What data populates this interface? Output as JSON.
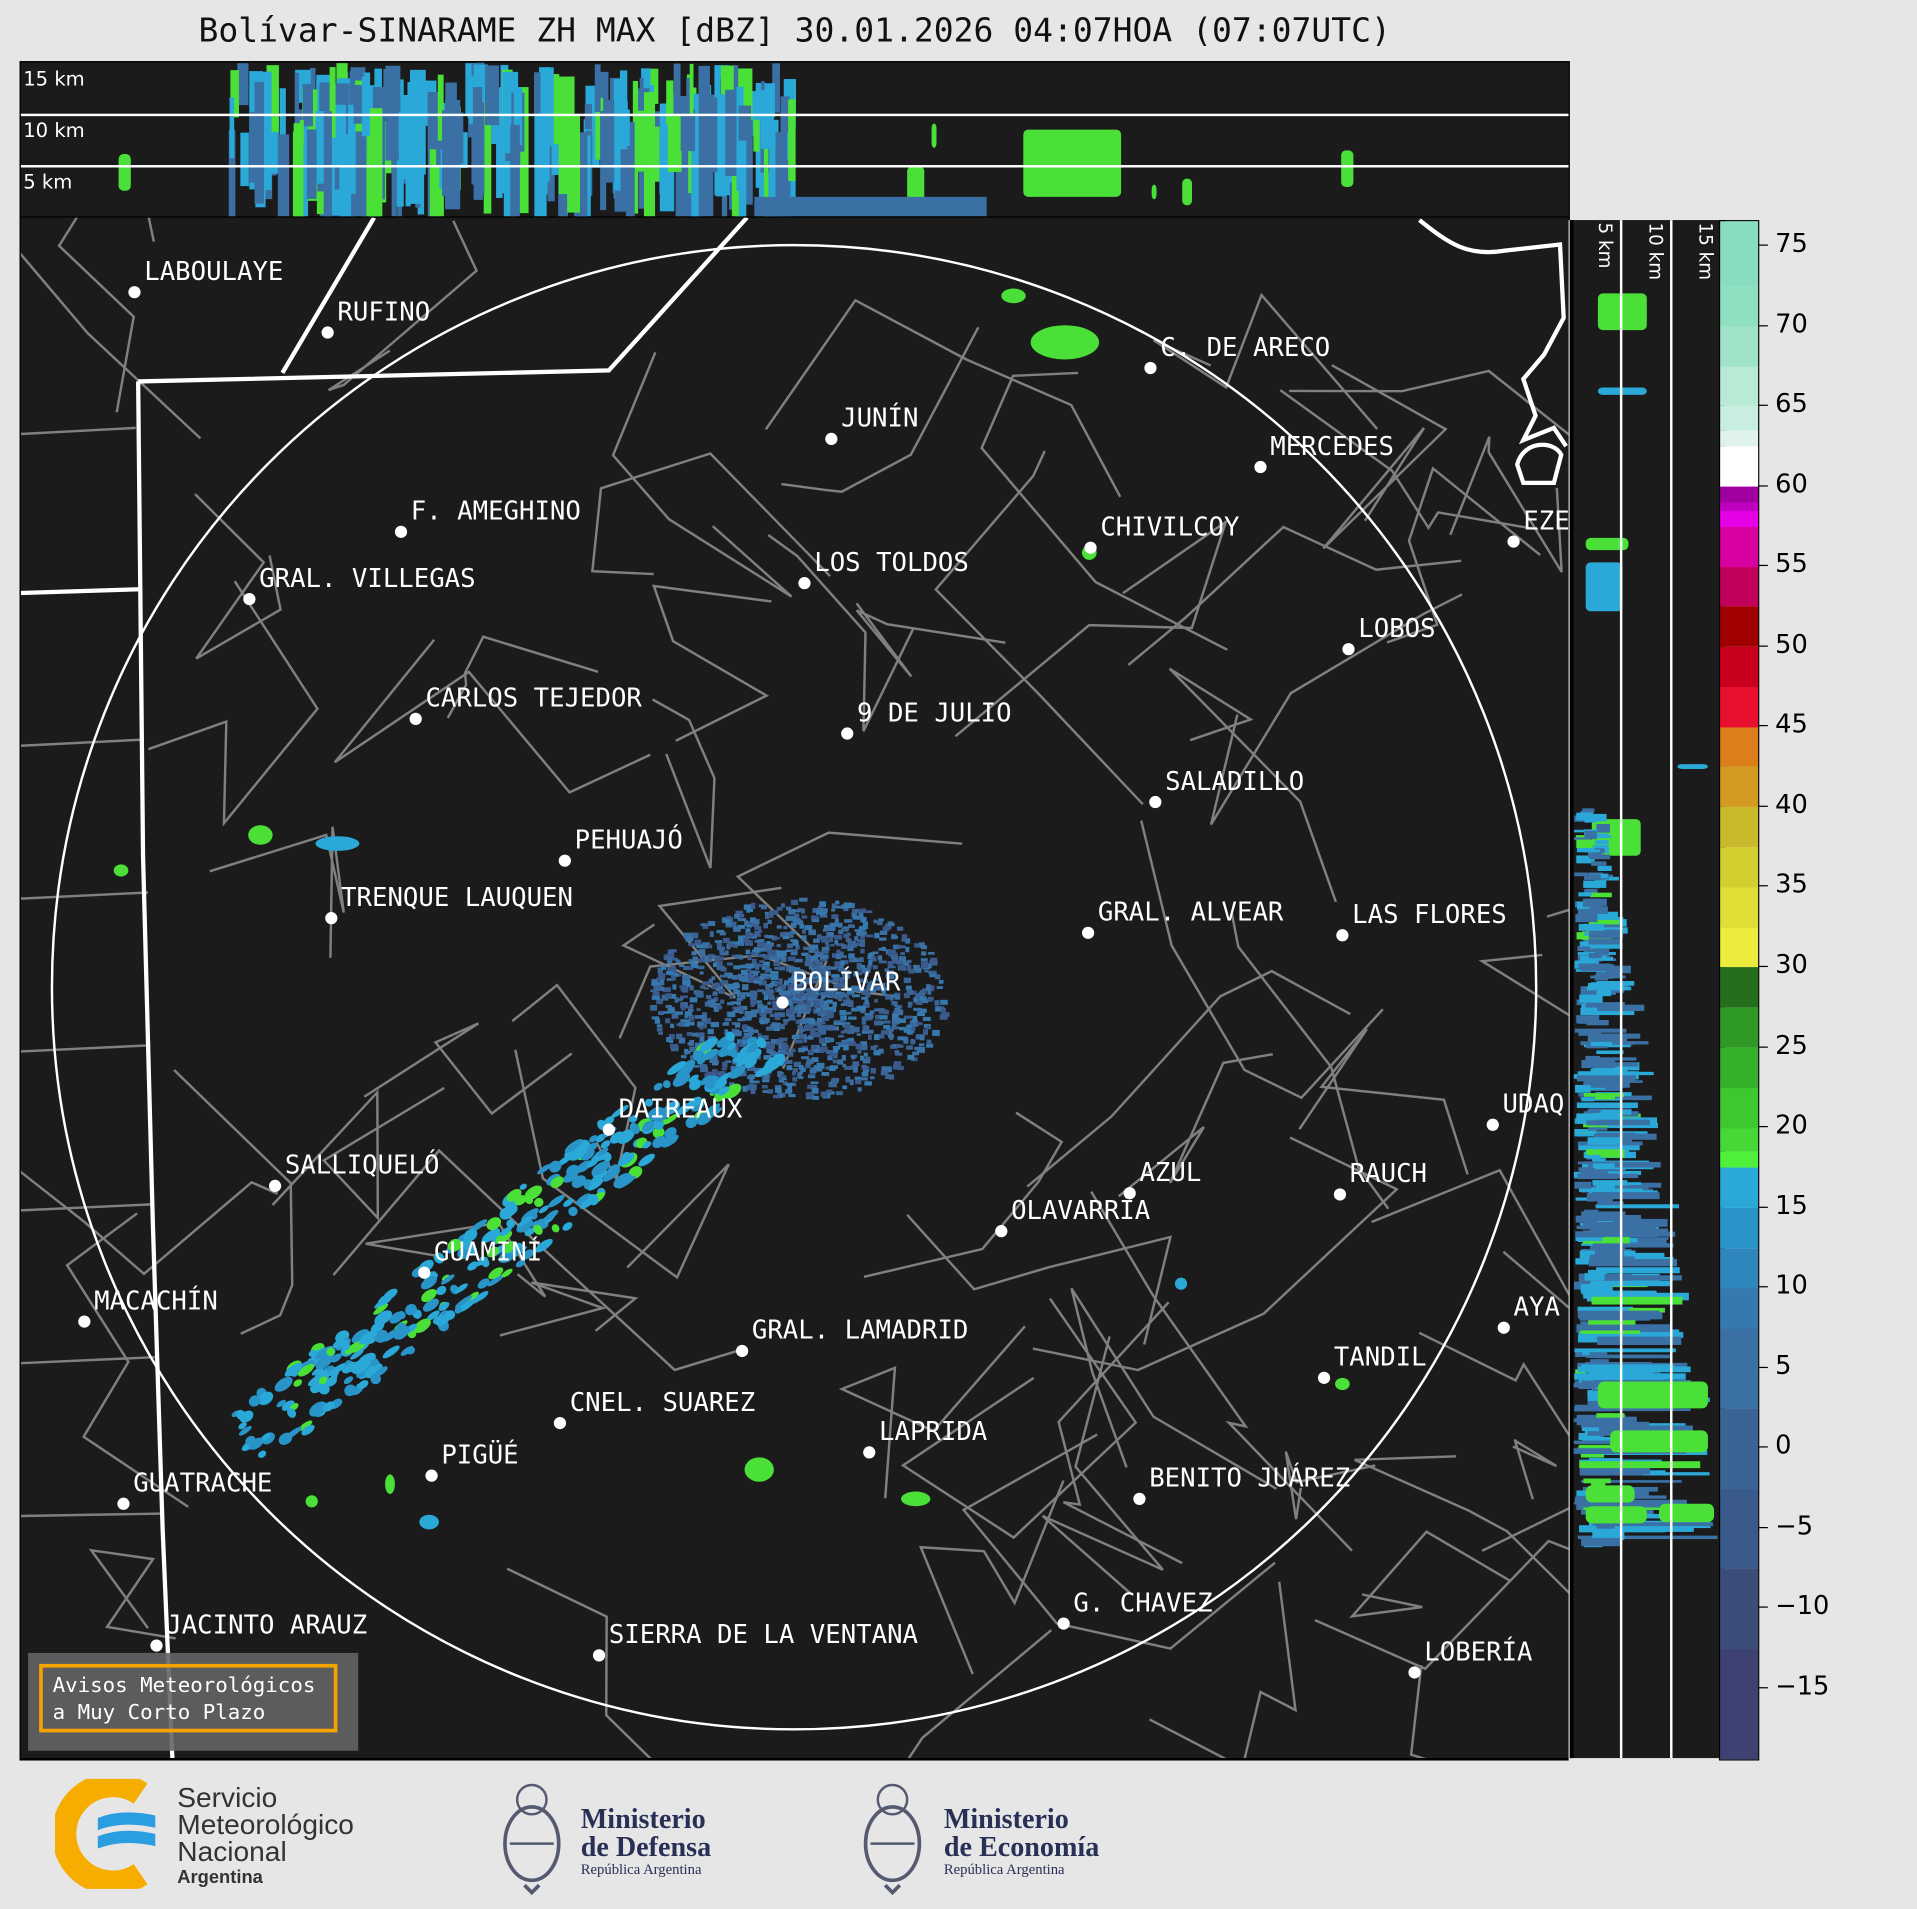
{
  "title": "Bolívar-SINARAME ZH MAX [dBZ] 30.01.2026 04:07HOA (07:07UTC)",
  "top_panel": {
    "labels": [
      "15 km",
      "10 km",
      "5 km"
    ]
  },
  "side_panel": {
    "labels": [
      "5 km",
      "10 km",
      "15 km"
    ]
  },
  "colorbar": {
    "unit": "dBZ",
    "ticks": [
      "75",
      "70",
      "65",
      "60",
      "55",
      "50",
      "45",
      "40",
      "35",
      "30",
      "25",
      "20",
      "15",
      "10",
      "5",
      "0",
      "−5",
      "−10",
      "−15"
    ],
    "colors": [
      "#3e4272",
      "#3c4d7a",
      "#3a5a8c",
      "#3a6496",
      "#3a70a4",
      "#3579ae",
      "#2e86bd",
      "#2994c8",
      "#2aa8d8",
      "#4ef03a",
      "#46d834",
      "#3ec830",
      "#37b02a",
      "#2e9a25",
      "#246e1e",
      "#ecec3c",
      "#dede36",
      "#d2d030",
      "#c9ba2c",
      "#d39a20",
      "#dc7e1a",
      "#e8102e",
      "#c8001e",
      "#a00000",
      "#c0005a",
      "#d800a0",
      "#e600e6",
      "#c000c0",
      "#a000a0",
      "#ffffff",
      "#dff3ea",
      "#c8eedf",
      "#b8ead6",
      "#9fe4c8",
      "#8ee0c0",
      "#88dcc0"
    ]
  },
  "cities": [
    "LABOULAYE",
    "RUFINO",
    "C. DE ARECO",
    "JUNÍN",
    "MERCEDES",
    "F. AMEGHINO",
    "CHIVILCOY",
    "EZE",
    "GRAL. VILLEGAS",
    "LOS TOLDOS",
    "LOBOS",
    "CARLOS TEJEDOR",
    "9 DE JULIO",
    "SALADILLO",
    "PEHUAJÓ",
    "TRENQUE LAUQUEN",
    "GRAL. ALVEAR",
    "LAS FLORES",
    "BOLÍVAR",
    "DAIREAUX",
    "UDAQ",
    "SALLIQUELÓ",
    "AZUL",
    "RAUCH",
    "OLAVARRÍA",
    "GUAMINÍ",
    "MACACHÍN",
    "AYA",
    "GRAL. LAMADRID",
    "TANDIL",
    "CNEL. SUAREZ",
    "LAPRIDA",
    "PIGÜÉ",
    "GUATRACHE",
    "BENITO JUÁREZ",
    "G. CHAVEZ",
    "JACINTO ARAUZ",
    "SIERRA DE LA VENTANA",
    "LOBERÍA"
  ],
  "legend": {
    "line1": "Avisos Meteorológicos",
    "line2": "a Muy Corto Plazo"
  },
  "logos": {
    "smn": [
      "Servicio",
      "Meteorológico",
      "Nacional",
      "Argentina"
    ],
    "defensa": [
      "Ministerio",
      "de Defensa",
      "República Argentina"
    ],
    "economia": [
      "Ministerio",
      "de Economía",
      "República Argentina"
    ]
  },
  "colors": {
    "background": "#1b1b1b",
    "borders": "#ffffff",
    "counties": "#808080",
    "legend_border": "#f5a300"
  }
}
